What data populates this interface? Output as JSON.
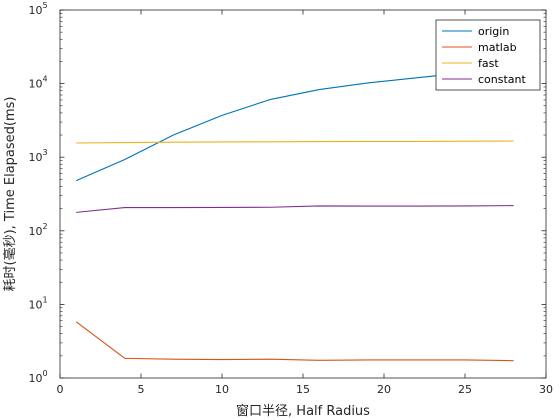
{
  "chart_data": {
    "type": "line",
    "title": "",
    "xlabel": "窗口半径, Half Radius",
    "ylabel": "耗时(毫秒), Time Elapased(ms)",
    "xlim": [
      0,
      30
    ],
    "ylim": [
      1,
      100000
    ],
    "yscale": "log",
    "xticks": [
      0,
      5,
      10,
      15,
      20,
      25,
      30
    ],
    "yticks": [
      {
        "base": "10",
        "exp": "0"
      },
      {
        "base": "10",
        "exp": "1"
      },
      {
        "base": "10",
        "exp": "2"
      },
      {
        "base": "10",
        "exp": "3"
      },
      {
        "base": "10",
        "exp": "4"
      },
      {
        "base": "10",
        "exp": "5"
      }
    ],
    "grid": false,
    "legend_position": "top-right",
    "x": [
      1,
      4,
      7,
      10,
      13,
      16,
      19,
      22,
      25,
      28
    ],
    "series": [
      {
        "name": "origin",
        "color": "#0072BD",
        "values": [
          480,
          930,
          2000,
          3700,
          6100,
          8300,
          10200,
          12000,
          14000,
          16000
        ]
      },
      {
        "name": "matlab",
        "color": "#D95319",
        "values": [
          5.8,
          1.85,
          1.8,
          1.78,
          1.8,
          1.74,
          1.76,
          1.76,
          1.76,
          1.72
        ]
      },
      {
        "name": "fast",
        "color": "#EDB120",
        "values": [
          1560,
          1580,
          1600,
          1610,
          1620,
          1630,
          1640,
          1640,
          1650,
          1660
        ]
      },
      {
        "name": "constant",
        "color": "#7E2F8E",
        "values": [
          178,
          207,
          207,
          208,
          209,
          218,
          217,
          217,
          218,
          220
        ]
      }
    ]
  }
}
